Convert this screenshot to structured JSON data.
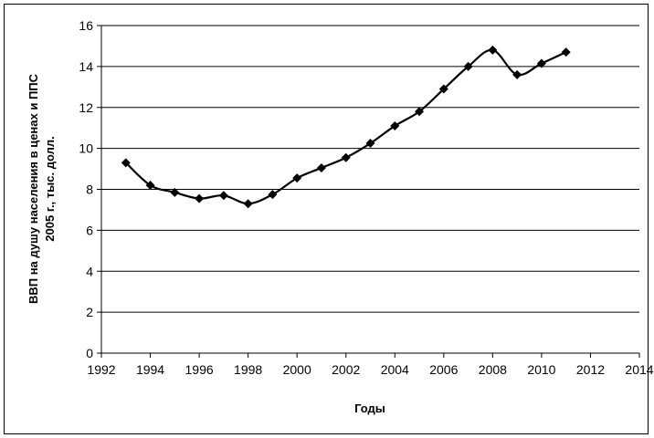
{
  "chart_data": {
    "type": "line",
    "title": "",
    "xlabel": "Годы",
    "ylabel_line1": "ВВП на душу населения в ценах и ППС",
    "ylabel_line2": "2005 г., тыс. долл.",
    "xlim": [
      1992,
      2014
    ],
    "ylim": [
      0,
      16
    ],
    "x_ticks": [
      1992,
      1994,
      1996,
      1998,
      2000,
      2002,
      2004,
      2006,
      2008,
      2010,
      2012,
      2014
    ],
    "y_ticks": [
      0,
      2,
      4,
      6,
      8,
      10,
      12,
      14,
      16
    ],
    "grid": "horizontal",
    "legend": "none",
    "line_color": "#000000",
    "marker": "diamond",
    "series": [
      {
        "x": [
          1993,
          1994,
          1995,
          1996,
          1997,
          1998,
          1999,
          2000,
          2001,
          2002,
          2003,
          2004,
          2005,
          2006,
          2007,
          2008,
          2009,
          2010,
          2011
        ],
        "values": [
          9.3,
          8.2,
          7.85,
          7.55,
          7.7,
          7.3,
          7.75,
          8.55,
          9.05,
          9.55,
          10.25,
          11.1,
          11.8,
          12.9,
          14.0,
          14.8,
          13.6,
          14.15,
          14.7
        ]
      }
    ]
  }
}
